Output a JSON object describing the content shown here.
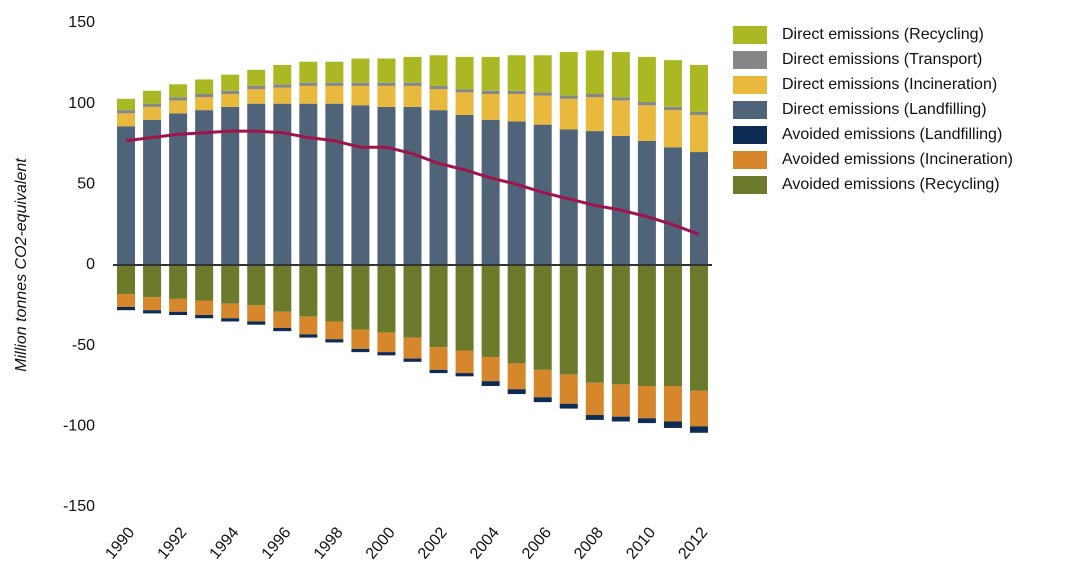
{
  "chart_data": {
    "type": "stacked-bar",
    "y_label": "Million tonnes CO2-equivalent",
    "categories": [
      "1990",
      null,
      "1992",
      null,
      "1994",
      null,
      "1996",
      null,
      "1998",
      null,
      "2000",
      null,
      "2002",
      null,
      "2004",
      null,
      "2006",
      null,
      "2008",
      null,
      "2010",
      null,
      "2012"
    ],
    "series": [
      {
        "name": "Direct emissions (Recycling)",
        "color": "#a9b823",
        "values": [
          7,
          8,
          8,
          9,
          10,
          10,
          12,
          13,
          13,
          15,
          15,
          16,
          19,
          20,
          21,
          22,
          23,
          27,
          27,
          28,
          28,
          29,
          29
        ]
      },
      {
        "name": "Direct emissions (Transport)",
        "color": "#878787",
        "values": [
          2,
          2,
          2,
          2,
          2,
          2,
          2,
          2,
          2,
          2,
          2,
          2,
          2,
          2,
          2,
          2,
          2,
          2,
          2,
          2,
          2,
          2,
          2
        ]
      },
      {
        "name": "Direct emissions (Incineration)",
        "color": "#e8b93d",
        "values": [
          8,
          8,
          8,
          8,
          8,
          9,
          10,
          11,
          11,
          12,
          13,
          13,
          13,
          14,
          16,
          17,
          18,
          19,
          21,
          22,
          22,
          23,
          23
        ]
      },
      {
        "name": "Direct emissions (Landfilling)",
        "color": "#4f6479",
        "values": [
          86,
          90,
          94,
          96,
          98,
          100,
          100,
          100,
          100,
          99,
          98,
          98,
          96,
          93,
          90,
          89,
          87,
          84,
          83,
          80,
          77,
          73,
          70
        ]
      },
      {
        "name": "Avoided emissions (Landfilling)",
        "color": "#0e2b53",
        "values": [
          -2,
          -2,
          -2,
          -2,
          -2,
          -2,
          -2,
          -2,
          -2,
          -2,
          -2,
          -2,
          -2,
          -2,
          -3,
          -3,
          -3,
          -3,
          -3,
          -3,
          -3,
          -4,
          -4
        ]
      },
      {
        "name": "Avoided emissions (Incineration)",
        "color": "#d7872b",
        "values": [
          -8,
          -8,
          -8,
          -9,
          -9,
          -10,
          -10,
          -11,
          -11,
          -12,
          -12,
          -13,
          -14,
          -14,
          -15,
          -16,
          -17,
          -18,
          -20,
          -20,
          -20,
          -22,
          -22
        ]
      },
      {
        "name": "Avoided emissions (Recycling)",
        "color": "#6b7a2b",
        "values": [
          -18,
          -20,
          -21,
          -22,
          -24,
          -25,
          -29,
          -32,
          -35,
          -40,
          -42,
          -45,
          -51,
          -53,
          -57,
          -61,
          -65,
          -68,
          -73,
          -74,
          -75,
          -75,
          -78
        ]
      }
    ],
    "line": {
      "color": "#a3134b",
      "values": [
        77,
        79,
        81,
        82,
        83,
        83,
        82,
        79,
        77,
        73,
        73,
        69,
        63,
        59,
        54,
        50,
        45,
        41,
        37,
        34,
        30,
        25,
        19
      ]
    },
    "ylim": [
      -150,
      150
    ],
    "yticks": [
      -150,
      -100,
      -50,
      0,
      50,
      100,
      150
    ],
    "grid": false
  }
}
